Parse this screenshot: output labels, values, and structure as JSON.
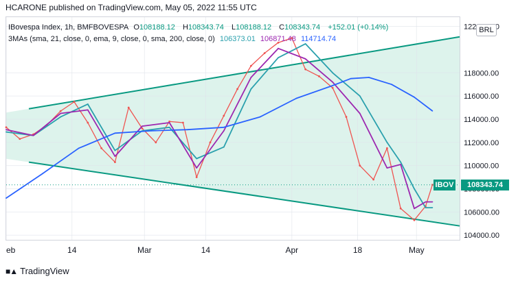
{
  "header": {
    "text": "HCARONE published on TradingView.com, May 05, 2022 11:55 UTC"
  },
  "legend": {
    "line1": {
      "symbol": "IBovespa Index, 1h, BMFBOVESPA",
      "o_label": "O",
      "o": "108188.12",
      "h_label": "H",
      "h": "108343.74",
      "l_label": "L",
      "l": "108188.12",
      "c_label": "C",
      "c": "108343.74",
      "change": "+152.01 (+0.14%)"
    },
    "line2": {
      "label": "3MAs (sma, 21, close, 0, ema, 9, close, 0, sma, 200, close, 0)",
      "ma21": "106373.01",
      "ma9": "106871.48",
      "ma200": "114714.74"
    }
  },
  "currency": "BRL",
  "price_tag": {
    "ticker": "IBOV",
    "value": "108343.74"
  },
  "footer": {
    "brand": "TradingView"
  },
  "colors": {
    "background": "#d9f2ea",
    "up": "#26a69a",
    "down": "#ef5350",
    "ma21": "#2aa0ad",
    "ma9": "#9c27b0",
    "ma200": "#2962ff",
    "trendline": "#089981",
    "tag": "#089981"
  },
  "chart_data": {
    "type": "line",
    "title": "IBovespa Index, 1h, BMFBOVESPA",
    "ylim": [
      103600,
      122800
    ],
    "y_ticks": [
      104000,
      106000,
      108000,
      110000,
      112000,
      114000,
      116000,
      118000,
      122000
    ],
    "y_tick_labels": [
      "104000.00",
      "106000.00",
      "108000.00",
      "110000.00",
      "112000.00",
      "114000.00",
      "116000.00",
      "118000.00",
      "122000.00"
    ],
    "x_tick_labels": [
      "eb",
      "14",
      "Mar",
      "14",
      "Apr",
      "18",
      "May"
    ],
    "x_tick_fraction": [
      0.0,
      0.145,
      0.305,
      0.44,
      0.63,
      0.775,
      0.905
    ],
    "current_price": 108343.74,
    "series": [
      {
        "name": "IBOV",
        "t": [
          0.0,
          0.03,
          0.06,
          0.09,
          0.12,
          0.15,
          0.18,
          0.21,
          0.24,
          0.27,
          0.3,
          0.33,
          0.36,
          0.39,
          0.42,
          0.45,
          0.48,
          0.51,
          0.54,
          0.57,
          0.6,
          0.63,
          0.66,
          0.69,
          0.72,
          0.75,
          0.78,
          0.81,
          0.84,
          0.87,
          0.9,
          0.925,
          0.94
        ],
        "values": [
          113300,
          112300,
          112700,
          113500,
          114700,
          115500,
          113700,
          111500,
          110300,
          115000,
          113200,
          112000,
          113800,
          113700,
          109000,
          112000,
          114300,
          116600,
          118600,
          119700,
          120600,
          121000,
          118300,
          117700,
          116700,
          114200,
          110000,
          108800,
          111500,
          106300,
          105300,
          106500,
          108343.74
        ]
      },
      {
        "name": "sma 21",
        "t": [
          0.0,
          0.06,
          0.12,
          0.18,
          0.24,
          0.3,
          0.36,
          0.42,
          0.48,
          0.54,
          0.6,
          0.66,
          0.72,
          0.78,
          0.84,
          0.87,
          0.9,
          0.925,
          0.94
        ],
        "values": [
          112900,
          112600,
          114200,
          115300,
          111300,
          113000,
          113300,
          110600,
          111600,
          116600,
          119300,
          120500,
          118000,
          116000,
          112000,
          110300,
          108000,
          106373.01,
          106373.01
        ]
      },
      {
        "name": "ema 9",
        "t": [
          0.0,
          0.06,
          0.12,
          0.18,
          0.24,
          0.3,
          0.36,
          0.42,
          0.48,
          0.54,
          0.6,
          0.66,
          0.72,
          0.78,
          0.84,
          0.87,
          0.9,
          0.925,
          0.94
        ],
        "values": [
          113100,
          112600,
          114500,
          114800,
          110800,
          113400,
          113700,
          109800,
          113000,
          117600,
          120100,
          119200,
          117200,
          114500,
          109800,
          110100,
          106300,
          106871.48,
          106871.48
        ]
      },
      {
        "name": "sma 200",
        "t": [
          0.0,
          0.08,
          0.16,
          0.24,
          0.32,
          0.4,
          0.48,
          0.56,
          0.64,
          0.72,
          0.76,
          0.8,
          0.85,
          0.9,
          0.94
        ],
        "values": [
          107200,
          109300,
          111500,
          112800,
          113000,
          113100,
          113300,
          114200,
          115800,
          116900,
          117500,
          117600,
          117000,
          115900,
          114714.74
        ]
      }
    ],
    "trendlines": [
      {
        "name": "upper channel",
        "t": [
          0.05,
          1.0
        ],
        "values": [
          114900,
          121100
        ]
      },
      {
        "name": "lower channel",
        "t": [
          0.05,
          1.0
        ],
        "values": [
          110300,
          104800
        ]
      }
    ]
  }
}
